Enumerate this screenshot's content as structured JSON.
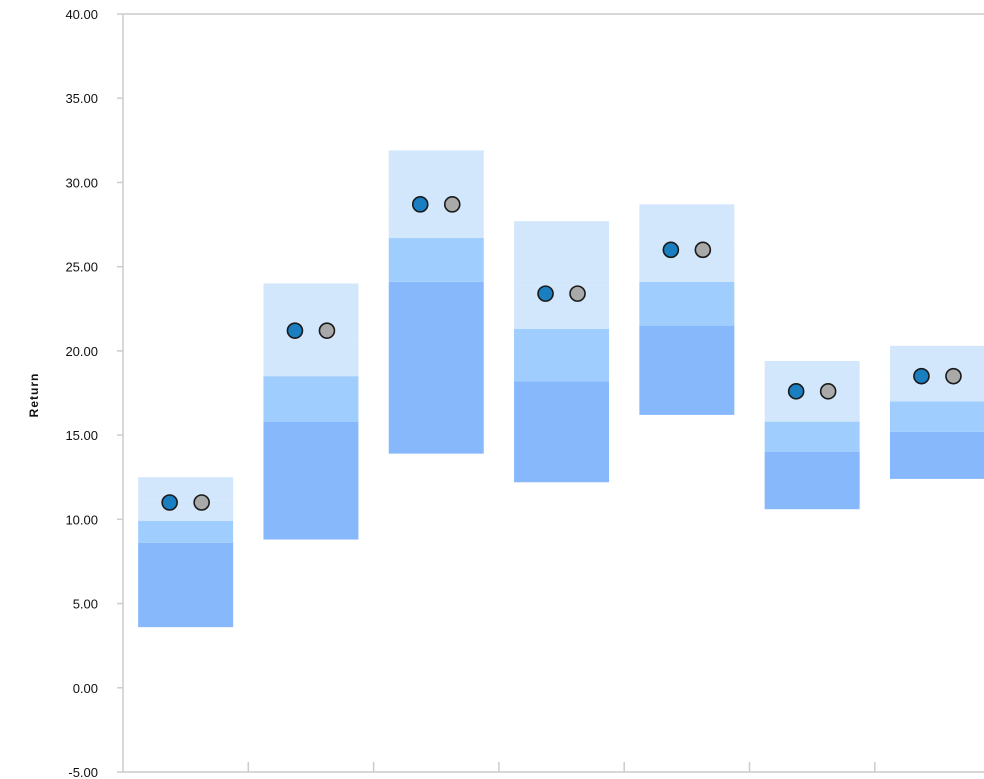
{
  "chart_data": {
    "type": "floating-bar",
    "title": "",
    "xlabel": "",
    "ylabel": "Return",
    "ylim": [
      -5,
      40
    ],
    "yticks": [
      "40.00",
      "35.00",
      "30.00",
      "25.00",
      "20.00",
      "15.00",
      "10.00",
      "5.00",
      "0.00",
      "-5.00"
    ],
    "ytick_values": [
      40,
      35,
      30,
      25,
      20,
      15,
      10,
      5,
      0,
      -5
    ],
    "grid": false,
    "legend": "none",
    "colors": {
      "band_outer": "#d2e6fc",
      "band_mid": "#9fcdfd",
      "band_inner": "#87b8fc",
      "marker_primary": "#1a7fc1",
      "marker_secondary": "#a9a9a9",
      "axis": "#cccccc"
    },
    "groups": [
      {
        "band": [
          3.6,
          8.6,
          9.9,
          11.1,
          12.5
        ],
        "markers": [
          11.0,
          11.0
        ]
      },
      {
        "band": [
          8.8,
          15.8,
          18.5,
          20.7,
          24.0
        ],
        "markers": [
          21.2,
          21.2
        ]
      },
      {
        "band": [
          13.9,
          24.1,
          26.7,
          28.5,
          31.9
        ],
        "markers": [
          28.7,
          28.7
        ]
      },
      {
        "band": [
          12.2,
          18.2,
          21.3,
          23.9,
          27.7
        ],
        "markers": [
          23.4,
          23.4
        ]
      },
      {
        "band": [
          16.2,
          21.5,
          24.1,
          26.2,
          28.7
        ],
        "markers": [
          26.0,
          26.0
        ]
      },
      {
        "band": [
          10.6,
          14.0,
          15.8,
          17.5,
          19.4
        ],
        "markers": [
          17.6,
          17.6
        ]
      },
      {
        "band": [
          12.4,
          15.2,
          17.0,
          18.3,
          20.3
        ],
        "markers": [
          18.5,
          18.5
        ]
      }
    ]
  }
}
